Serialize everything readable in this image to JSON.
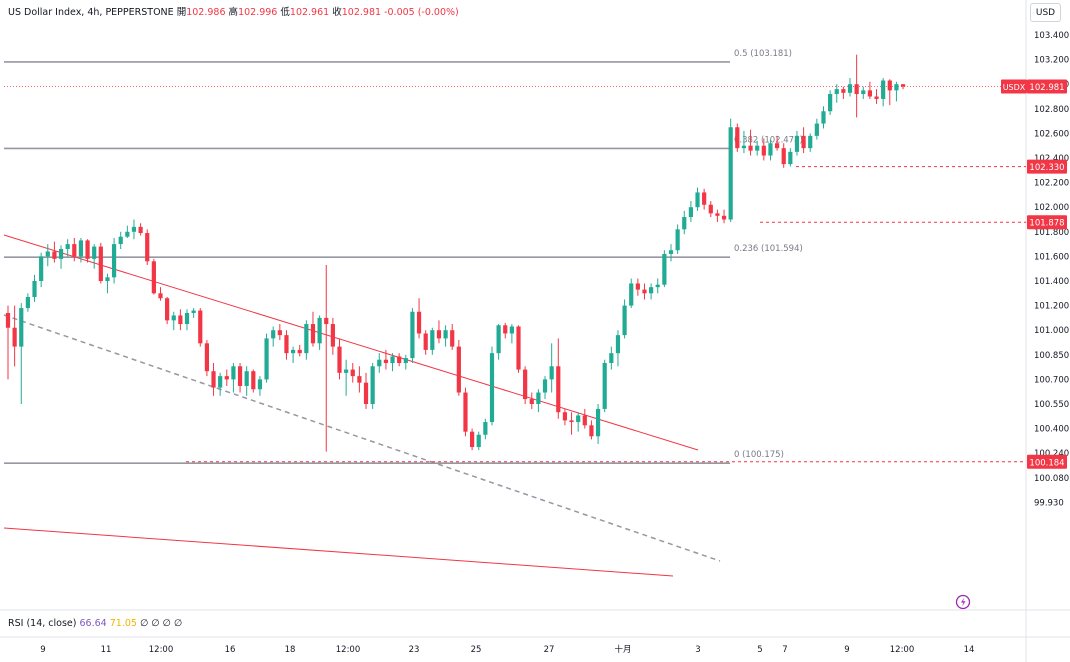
{
  "header": {
    "title": "US Dollar Index, 4h, PEPPERSTONE",
    "open_label": "開",
    "open": "102.986",
    "high_label": "高",
    "high": "102.996",
    "low_label": "低",
    "low": "102.961",
    "close_label": "收",
    "close": "102.981",
    "change": "-0.005 (-0.00%)"
  },
  "currency_button": "USD",
  "rsi": {
    "label": "RSI (14, close)",
    "value1": "66.64",
    "value2": "71.05",
    "extra": "∅ ∅ ∅ ∅"
  },
  "price_tag": {
    "symbol": "USDX",
    "value": 102.981
  },
  "alert_icon": "lightning-icon",
  "chart_data": {
    "type": "candlestick",
    "ylim": [
      99.93,
      103.45
    ],
    "y_ticks": [
      103.4,
      103.2,
      103.0,
      102.8,
      102.6,
      102.4,
      102.2,
      102.0,
      101.8,
      101.6,
      101.4,
      101.2,
      101.0,
      100.85,
      100.7,
      100.55,
      100.4,
      100.24,
      100.08,
      99.93
    ],
    "y_tick_labels": [
      "103.400",
      "103.200",
      "103.000",
      "102.800",
      "102.600",
      "102.400",
      "102.200",
      "102.000",
      "101.800",
      "101.600",
      "101.400",
      "101.200",
      "101.000",
      "100.850",
      "100.700",
      "100.550",
      "100.400",
      "100.240",
      "100.080",
      "99.930"
    ],
    "x_labels": [
      "9",
      "11",
      "12:00",
      "16",
      "18",
      "12:00",
      "23",
      "25",
      "27",
      "十月",
      "3",
      "5",
      "7",
      "9",
      "12:00",
      "14"
    ],
    "fib_levels": [
      {
        "label": "0.5 (103.181)",
        "value": 103.181
      },
      {
        "label": "0.382 (102.478)",
        "value": 102.478
      },
      {
        "label": "0.236 (101.594)",
        "value": 101.594
      },
      {
        "label": "0 (100.175)",
        "value": 100.175
      }
    ],
    "price_markers": [
      {
        "label": "102.330",
        "value": 102.33
      },
      {
        "label": "101.878",
        "value": 101.878
      },
      {
        "label": "100.184",
        "value": 100.184
      }
    ],
    "up_color": "#22ab94",
    "down_color": "#f23645",
    "candles": [
      [
        101.14,
        101.2,
        100.7,
        101.02
      ],
      [
        101.02,
        101.2,
        100.78,
        100.9
      ],
      [
        100.9,
        101.22,
        100.55,
        101.18
      ],
      [
        101.18,
        101.3,
        101.15,
        101.27
      ],
      [
        101.27,
        101.45,
        101.23,
        101.4
      ],
      [
        101.4,
        101.63,
        101.35,
        101.6
      ],
      [
        101.6,
        101.7,
        101.52,
        101.64
      ],
      [
        101.64,
        101.72,
        101.55,
        101.58
      ],
      [
        101.58,
        101.69,
        101.5,
        101.66
      ],
      [
        101.66,
        101.74,
        101.6,
        101.7
      ],
      [
        101.7,
        101.75,
        101.56,
        101.6
      ],
      [
        101.6,
        101.75,
        101.55,
        101.73
      ],
      [
        101.73,
        101.74,
        101.55,
        101.58
      ],
      [
        101.58,
        101.7,
        101.5,
        101.68
      ],
      [
        101.68,
        101.71,
        101.38,
        101.4
      ],
      [
        101.4,
        101.46,
        101.3,
        101.43
      ],
      [
        101.43,
        101.75,
        101.38,
        101.7
      ],
      [
        101.7,
        101.8,
        101.66,
        101.76
      ],
      [
        101.76,
        101.85,
        101.75,
        101.8
      ],
      [
        101.8,
        101.9,
        101.74,
        101.84
      ],
      [
        101.84,
        101.87,
        101.77,
        101.79
      ],
      [
        101.79,
        101.82,
        101.53,
        101.56
      ],
      [
        101.56,
        101.58,
        101.29,
        101.3
      ],
      [
        101.3,
        101.35,
        101.24,
        101.26
      ],
      [
        101.26,
        101.27,
        101.05,
        101.08
      ],
      [
        101.08,
        101.15,
        101.0,
        101.12
      ],
      [
        101.12,
        101.17,
        101.0,
        101.05
      ],
      [
        101.05,
        101.17,
        101.0,
        101.14
      ],
      [
        101.14,
        101.18,
        101.1,
        101.16
      ],
      [
        101.16,
        101.18,
        100.9,
        100.92
      ],
      [
        100.92,
        100.94,
        100.72,
        100.75
      ],
      [
        100.75,
        100.8,
        100.6,
        100.65
      ],
      [
        100.65,
        100.74,
        100.6,
        100.72
      ],
      [
        100.72,
        100.76,
        100.66,
        100.7
      ],
      [
        100.7,
        100.8,
        100.62,
        100.78
      ],
      [
        100.78,
        100.8,
        100.62,
        100.66
      ],
      [
        100.66,
        100.78,
        100.6,
        100.75
      ],
      [
        100.75,
        100.76,
        100.62,
        100.64
      ],
      [
        100.64,
        100.72,
        100.6,
        100.7
      ],
      [
        100.7,
        100.98,
        100.68,
        100.95
      ],
      [
        100.95,
        101.03,
        100.9,
        101.0
      ],
      [
        101.0,
        101.05,
        100.94,
        100.97
      ],
      [
        100.97,
        101.0,
        100.82,
        100.86
      ],
      [
        100.86,
        100.9,
        100.8,
        100.88
      ],
      [
        100.88,
        100.91,
        100.84,
        100.86
      ],
      [
        100.86,
        101.08,
        100.82,
        101.05
      ],
      [
        101.05,
        101.15,
        100.9,
        100.92
      ],
      [
        100.92,
        101.12,
        100.88,
        101.1
      ],
      [
        101.1,
        101.53,
        100.25,
        101.05
      ],
      [
        101.05,
        101.1,
        100.85,
        100.9
      ],
      [
        100.9,
        100.95,
        100.7,
        100.74
      ],
      [
        100.74,
        100.82,
        100.6,
        100.76
      ],
      [
        100.76,
        100.8,
        100.68,
        100.72
      ],
      [
        100.72,
        100.78,
        100.62,
        100.68
      ],
      [
        100.68,
        100.74,
        100.52,
        100.55
      ],
      [
        100.55,
        100.8,
        100.52,
        100.78
      ],
      [
        100.78,
        100.86,
        100.74,
        100.82
      ],
      [
        100.82,
        100.88,
        100.76,
        100.8
      ],
      [
        100.8,
        100.86,
        100.75,
        100.84
      ],
      [
        100.84,
        100.86,
        100.78,
        100.8
      ],
      [
        100.8,
        100.85,
        100.76,
        100.83
      ],
      [
        100.83,
        101.18,
        100.8,
        101.15
      ],
      [
        101.15,
        101.26,
        100.95,
        100.98
      ],
      [
        100.98,
        101.0,
        100.85,
        100.88
      ],
      [
        100.88,
        101.02,
        100.85,
        101.0
      ],
      [
        101.0,
        101.08,
        100.92,
        100.95
      ],
      [
        100.95,
        101.04,
        100.9,
        101.0
      ],
      [
        101.0,
        101.05,
        100.88,
        100.9
      ],
      [
        100.9,
        100.94,
        100.6,
        100.62
      ],
      [
        100.62,
        100.65,
        100.35,
        100.38
      ],
      [
        100.38,
        100.4,
        100.26,
        100.28
      ],
      [
        100.28,
        100.38,
        100.26,
        100.36
      ],
      [
        100.36,
        100.46,
        100.33,
        100.44
      ],
      [
        100.44,
        100.9,
        100.42,
        100.86
      ],
      [
        100.86,
        101.05,
        100.82,
        101.04
      ],
      [
        101.04,
        101.06,
        100.95,
        100.98
      ],
      [
        100.98,
        101.05,
        100.92,
        101.03
      ],
      [
        101.03,
        101.04,
        100.74,
        100.76
      ],
      [
        100.76,
        100.78,
        100.55,
        100.58
      ],
      [
        100.58,
        100.62,
        100.52,
        100.55
      ],
      [
        100.55,
        100.64,
        100.5,
        100.62
      ],
      [
        100.62,
        100.72,
        100.58,
        100.7
      ],
      [
        100.7,
        100.92,
        100.62,
        100.78
      ],
      [
        100.78,
        100.95,
        100.46,
        100.5
      ],
      [
        100.5,
        100.52,
        100.42,
        100.45
      ],
      [
        100.45,
        100.5,
        100.36,
        100.44
      ],
      [
        100.44,
        100.5,
        100.38,
        100.48
      ],
      [
        100.48,
        100.52,
        100.4,
        100.42
      ],
      [
        100.42,
        100.45,
        100.33,
        100.35
      ],
      [
        100.35,
        100.55,
        100.3,
        100.52
      ],
      [
        100.52,
        100.82,
        100.5,
        100.8
      ],
      [
        100.8,
        100.9,
        100.76,
        100.86
      ],
      [
        100.86,
        101.0,
        100.78,
        100.97
      ],
      [
        100.97,
        101.25,
        100.95,
        101.2
      ],
      [
        101.2,
        101.42,
        101.18,
        101.38
      ],
      [
        101.38,
        101.42,
        101.28,
        101.33
      ],
      [
        101.33,
        101.38,
        101.25,
        101.3
      ],
      [
        101.3,
        101.38,
        101.25,
        101.35
      ],
      [
        101.35,
        101.42,
        101.3,
        101.37
      ],
      [
        101.37,
        101.65,
        101.35,
        101.62
      ],
      [
        101.62,
        101.7,
        101.56,
        101.65
      ],
      [
        101.65,
        101.86,
        101.62,
        101.82
      ],
      [
        101.82,
        101.97,
        101.78,
        101.92
      ],
      [
        101.92,
        102.05,
        101.88,
        102.0
      ],
      [
        102.0,
        102.16,
        101.97,
        102.12
      ],
      [
        102.12,
        102.15,
        101.98,
        102.02
      ],
      [
        102.02,
        102.05,
        101.92,
        101.95
      ],
      [
        101.95,
        101.98,
        101.88,
        101.93
      ],
      [
        101.93,
        101.98,
        101.87,
        101.9
      ],
      [
        101.9,
        102.72,
        101.88,
        102.65
      ],
      [
        102.65,
        102.68,
        102.45,
        102.48
      ],
      [
        102.48,
        102.62,
        102.44,
        102.5
      ],
      [
        102.5,
        102.63,
        102.42,
        102.46
      ],
      [
        102.46,
        102.54,
        102.42,
        102.5
      ],
      [
        102.5,
        102.56,
        102.38,
        102.42
      ],
      [
        102.42,
        102.55,
        102.38,
        102.52
      ],
      [
        102.52,
        102.58,
        102.46,
        102.48
      ],
      [
        102.48,
        102.52,
        102.32,
        102.35
      ],
      [
        102.35,
        102.48,
        102.33,
        102.45
      ],
      [
        102.45,
        102.62,
        102.42,
        102.58
      ],
      [
        102.58,
        102.65,
        102.44,
        102.48
      ],
      [
        102.48,
        102.6,
        102.45,
        102.58
      ],
      [
        102.58,
        102.72,
        102.55,
        102.68
      ],
      [
        102.68,
        102.82,
        102.64,
        102.78
      ],
      [
        102.78,
        102.95,
        102.75,
        102.92
      ],
      [
        102.92,
        103.0,
        102.85,
        102.96
      ],
      [
        102.96,
        102.98,
        102.88,
        102.93
      ],
      [
        102.93,
        103.05,
        102.9,
        103.0
      ],
      [
        103.0,
        103.24,
        102.73,
        102.92
      ],
      [
        102.92,
        102.98,
        102.88,
        102.95
      ],
      [
        102.95,
        103.02,
        102.88,
        102.9
      ],
      [
        102.9,
        102.96,
        102.84,
        102.88
      ],
      [
        102.88,
        103.05,
        102.82,
        103.03
      ],
      [
        103.03,
        103.04,
        102.83,
        102.95
      ],
      [
        102.95,
        103.02,
        102.86,
        103.0
      ],
      [
        103.0,
        103.0,
        102.96,
        102.98
      ]
    ]
  }
}
